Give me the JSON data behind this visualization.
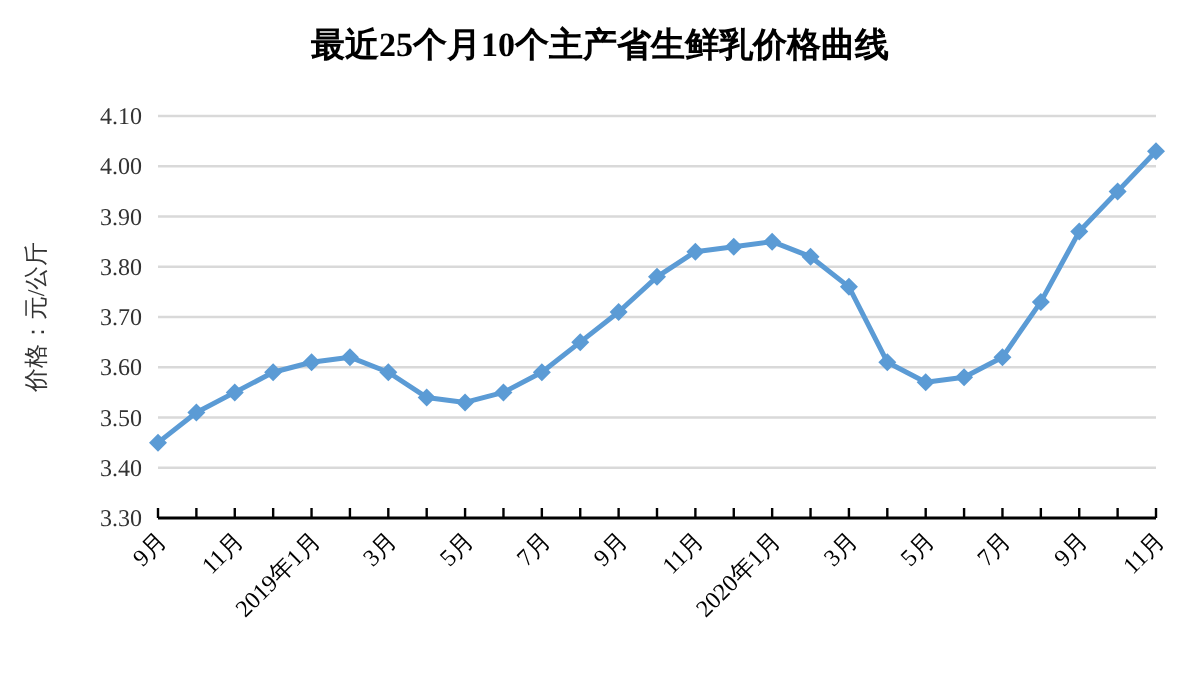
{
  "chart_data": {
    "type": "line",
    "title": "最近25个月10个主产省生鲜乳价格曲线",
    "ylabel": "价格：元/公斤",
    "categories": [
      "9月",
      null,
      "11月",
      null,
      "2019年1月",
      null,
      "3月",
      null,
      "5月",
      null,
      "7月",
      null,
      "9月",
      null,
      "11月",
      null,
      "2020年1月",
      null,
      "3月",
      null,
      "5月",
      null,
      "7月",
      null,
      "9月",
      null,
      "11月"
    ],
    "series": [
      {
        "color": "#5b9bd5",
        "values": [
          3.45,
          3.51,
          3.55,
          3.59,
          3.61,
          3.62,
          3.59,
          3.54,
          3.53,
          3.55,
          3.59,
          3.65,
          3.71,
          3.78,
          3.83,
          3.84,
          3.85,
          3.82,
          3.76,
          3.61,
          3.57,
          3.58,
          3.62,
          3.73,
          3.87,
          3.95,
          4.03
        ]
      }
    ],
    "ylim": [
      3.3,
      4.1
    ],
    "yticks": [
      {
        "value": 3.3,
        "label": "3.30"
      },
      {
        "value": 3.4,
        "label": "3.40"
      },
      {
        "value": 3.5,
        "label": "3.50"
      },
      {
        "value": 3.6,
        "label": "3.60"
      },
      {
        "value": 3.7,
        "label": "3.70"
      },
      {
        "value": 3.8,
        "label": "3.80"
      },
      {
        "value": 3.9,
        "label": "3.90"
      },
      {
        "value": 4.0,
        "label": "4.00"
      },
      {
        "value": 4.1,
        "label": "4.10"
      }
    ],
    "grid": "y",
    "marker": "diamond",
    "line_style": "solid"
  }
}
